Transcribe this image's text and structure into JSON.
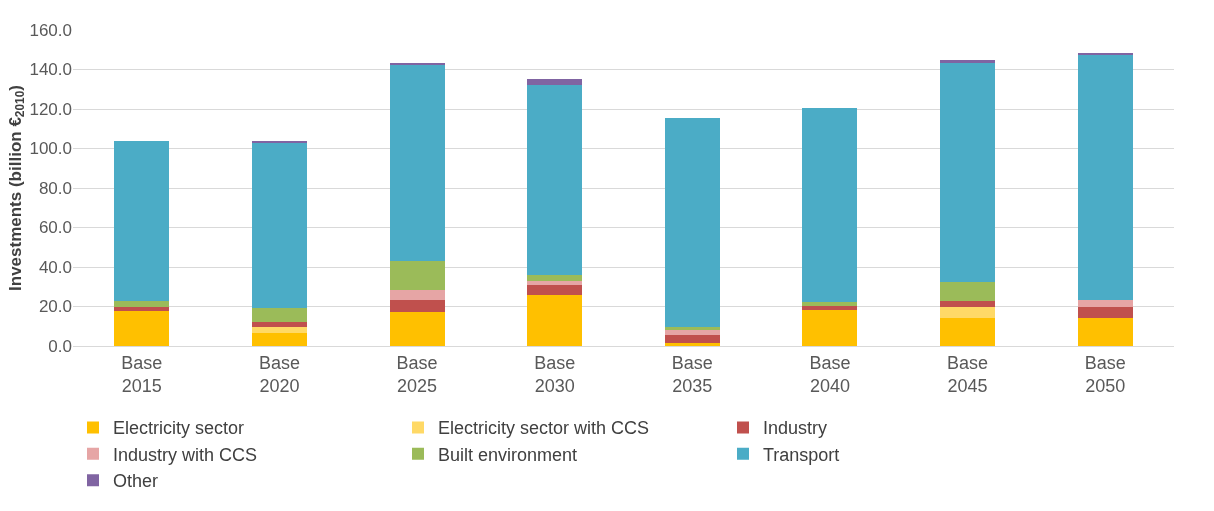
{
  "chart_data": {
    "type": "bar",
    "stacked": true,
    "ylabel": "Investments (billion €$_{2010}$)",
    "categories": [
      "Base 2015",
      "Base 2020",
      "Base 2025",
      "Base 2030",
      "Base 2035",
      "Base 2040",
      "Base 2045",
      "Base 2050"
    ],
    "series": [
      {
        "name": "Electricity sector",
        "color": "#ffc000",
        "values": [
          17.5,
          6.5,
          17,
          26,
          1.5,
          18,
          14,
          14
        ]
      },
      {
        "name": "Electricity sector with CCS",
        "color": "#ffd966",
        "values": [
          0,
          3,
          0,
          0,
          0,
          0,
          5.5,
          0
        ]
      },
      {
        "name": "Industry",
        "color": "#c0504d",
        "values": [
          2,
          2.5,
          6.5,
          5,
          4,
          2.5,
          3.5,
          5.5
        ]
      },
      {
        "name": "Industry with CCS",
        "color": "#e6a5a5",
        "values": [
          0,
          0,
          5,
          2,
          3,
          0,
          0,
          4
        ]
      },
      {
        "name": "Built environment",
        "color": "#9bbb59",
        "values": [
          3.5,
          7,
          14.5,
          3,
          1,
          2,
          9.5,
          0
        ]
      },
      {
        "name": "Transport",
        "color": "#4bacc6",
        "values": [
          81,
          84,
          99.5,
          96,
          106,
          98,
          111,
          124
        ]
      },
      {
        "name": "Other",
        "color": "#8064a2",
        "values": [
          0,
          0.8,
          0.5,
          3,
          0,
          0,
          1.5,
          0.7
        ]
      }
    ],
    "ylim": [
      0,
      160
    ],
    "yticks": [
      {
        "value": 0,
        "label": "0.0"
      },
      {
        "value": 20,
        "label": "20.0"
      },
      {
        "value": 40,
        "label": "40.0"
      },
      {
        "value": 60,
        "label": "60.0"
      },
      {
        "value": 80,
        "label": "80.0"
      },
      {
        "value": 100,
        "label": "100.0"
      },
      {
        "value": 120,
        "label": "120.0"
      },
      {
        "value": 140,
        "label": "140.0"
      },
      {
        "value": 160,
        "label": "160.0"
      }
    ],
    "grid": "y",
    "legend": "bottom"
  }
}
